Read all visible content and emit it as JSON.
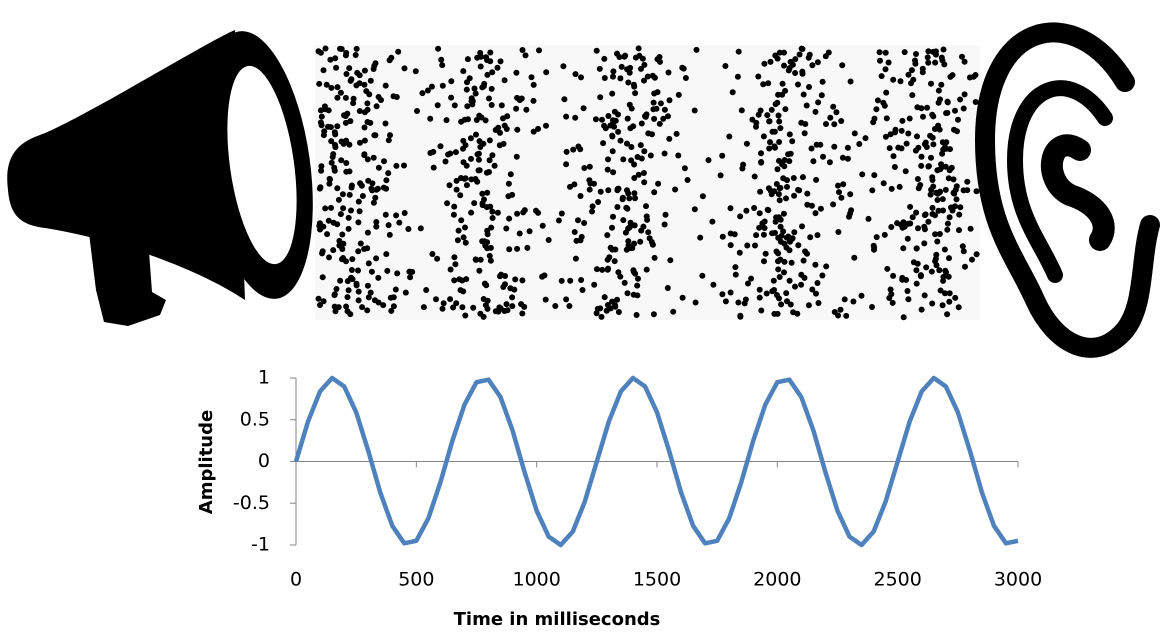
{
  "chart_data": {
    "type": "line",
    "x_label": "Time in milliseconds",
    "y_label": "Amplitude",
    "x": [
      0,
      50,
      100,
      150,
      200,
      250,
      300,
      350,
      400,
      450,
      500,
      550,
      600,
      650,
      700,
      750,
      800,
      850,
      900,
      950,
      1000,
      1050,
      1100,
      1150,
      1200,
      1250,
      1300,
      1350,
      1400,
      1450,
      1500,
      1550,
      1600,
      1650,
      1700,
      1750,
      1800,
      1850,
      1900,
      1950,
      2000,
      2050,
      2100,
      2150,
      2200,
      2250,
      2300,
      2350,
      2400,
      2450,
      2500,
      2550,
      2600,
      2650,
      2700,
      2750,
      2800,
      2850,
      2900,
      2950,
      3000
    ],
    "values": [
      0,
      0.48,
      0.84,
      1,
      0.9,
      0.59,
      0.13,
      -0.37,
      -0.77,
      -0.98,
      -0.95,
      -0.68,
      -0.25,
      0.25,
      0.68,
      0.95,
      0.98,
      0.77,
      0.37,
      -0.13,
      -0.59,
      -0.9,
      -1,
      -0.84,
      -0.48,
      0,
      0.48,
      0.84,
      1,
      0.9,
      0.59,
      0.13,
      -0.37,
      -0.77,
      -0.98,
      -0.95,
      -0.68,
      -0.25,
      0.25,
      0.68,
      0.95,
      0.98,
      0.77,
      0.37,
      -0.13,
      -0.59,
      -0.9,
      -1,
      -0.84,
      -0.48,
      0,
      0.48,
      0.84,
      1,
      0.9,
      0.59,
      0.13,
      -0.37,
      -0.77,
      -0.98,
      -0.95
    ],
    "color": "#4f81bd",
    "xlim": [
      0,
      3000
    ],
    "xticks": [
      0,
      500,
      1000,
      1500,
      2000,
      2500,
      3000
    ],
    "ylim": [
      -1,
      1
    ],
    "yticks": [
      -1,
      -0.5,
      0,
      0.5,
      1
    ],
    "grid": false
  }
}
